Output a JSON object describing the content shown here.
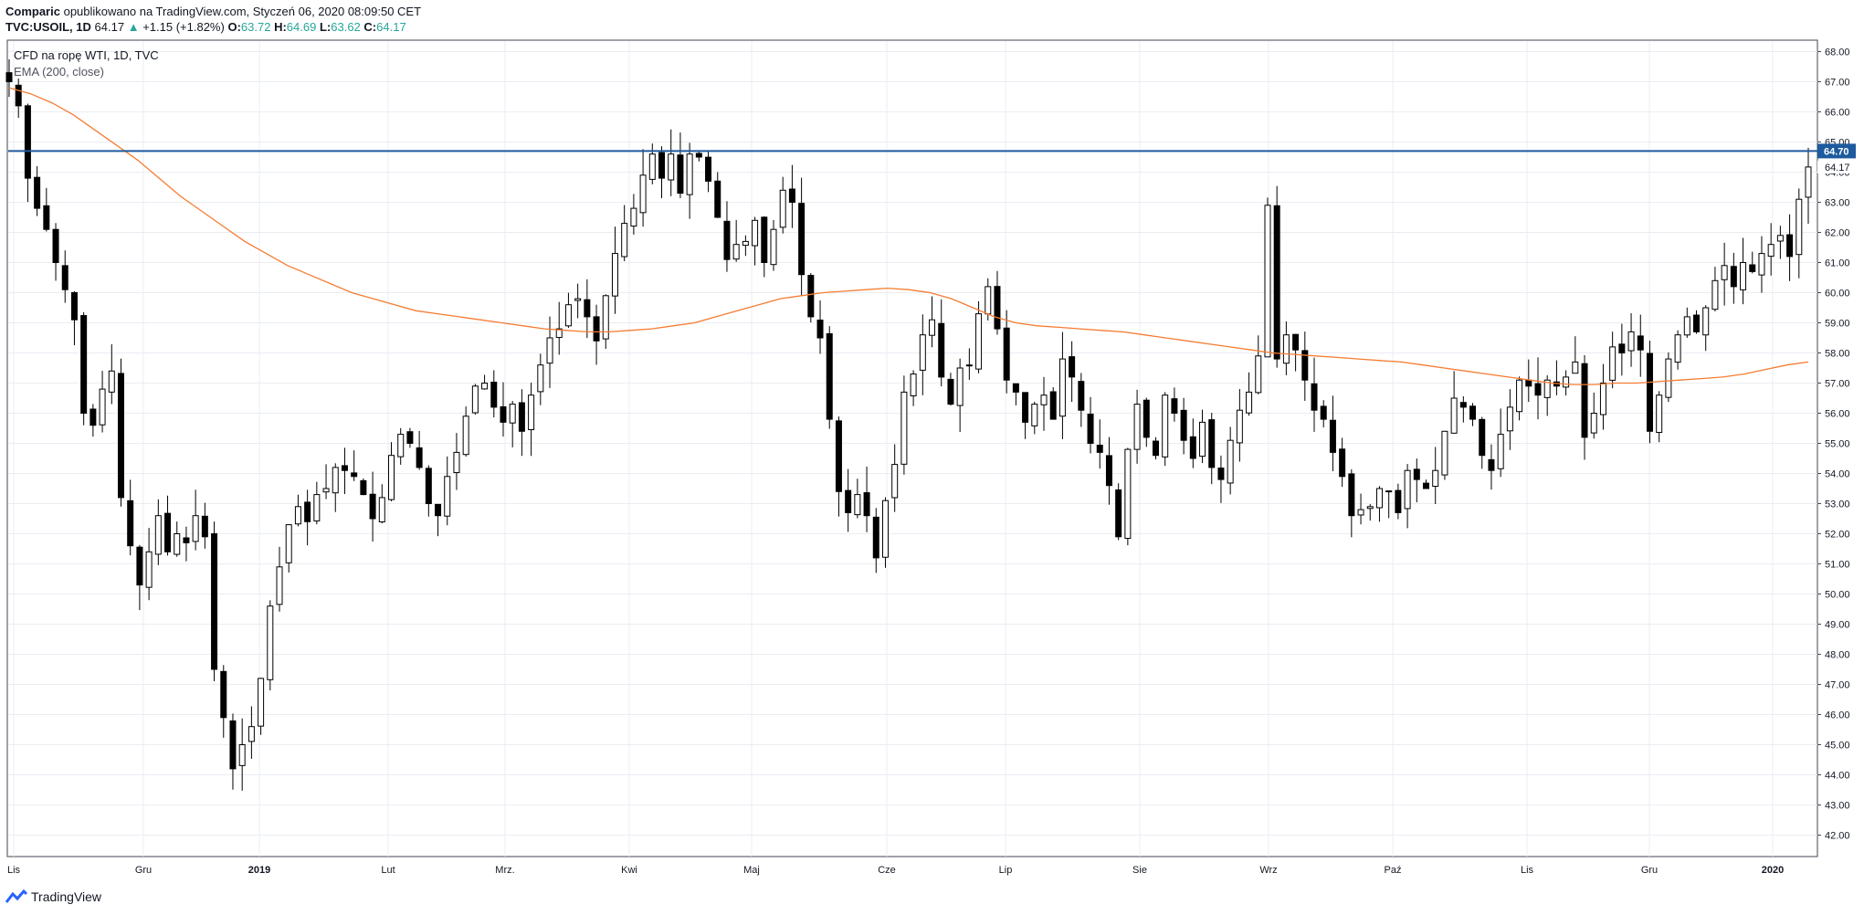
{
  "header": {
    "publisher": "Comparic",
    "published_text": "opublikowano na TradingView.com, Styczeń 06, 2020 08:09:50 CET",
    "symbol_text": "TVC:USOIL, 1D",
    "last": "64.17",
    "change": "+1.15 (+1.82%)",
    "o_label": "O:",
    "o": "63.72",
    "h_label": "H:",
    "h": "64.69",
    "l_label": "L:",
    "l": "63.62",
    "c_label": "C:",
    "c": "64.17",
    "arrow": "▲"
  },
  "legend": {
    "title": "CFD na ropę WTI, 1D, TVC",
    "indicator": "EMA (200, close)"
  },
  "footer": {
    "brand": "TradingView",
    "logo_icon": "tradingview-logo-icon"
  },
  "colors": {
    "ema": "#f57c32",
    "hline": "#1e5a9e",
    "grid": "#e9edf3",
    "candle": "#000000",
    "up_text": "#26a69a"
  },
  "chart_data": {
    "type": "candlestick",
    "ylim": [
      41.4,
      68.3
    ],
    "y_ticks": [
      "42.00",
      "43.00",
      "44.00",
      "45.00",
      "46.00",
      "47.00",
      "48.00",
      "49.00",
      "50.00",
      "51.00",
      "52.00",
      "53.00",
      "54.00",
      "55.00",
      "56.00",
      "57.00",
      "58.00",
      "59.00",
      "60.00",
      "61.00",
      "62.00",
      "63.00",
      "64.00",
      "65.00",
      "66.00",
      "67.00",
      "68.00"
    ],
    "x_labels": [
      "Lis",
      "Gru",
      "2019",
      "Lut",
      "Mrz.",
      "Kwi",
      "Maj",
      "Cze",
      "Lip",
      "Sie",
      "Wrz",
      "Paź",
      "Lis",
      "Gru",
      "2020"
    ],
    "horizontal_line": {
      "value": 64.7,
      "label": "64.70"
    },
    "last_price": {
      "value": 64.17,
      "label": "64.17"
    },
    "ema_label": "EMA (200, close)",
    "close_path": [
      67.0,
      66.2,
      63.8,
      62.8,
      62.1,
      61.0,
      60.1,
      59.1,
      56.0,
      55.6,
      56.8,
      57.4,
      53.2,
      51.6,
      50.3,
      51.4,
      52.6,
      51.4,
      52.0,
      51.7,
      52.6,
      51.9,
      47.5,
      45.9,
      44.2,
      45.0,
      45.6,
      47.2,
      49.6,
      50.9,
      52.3,
      52.9,
      52.4,
      53.3,
      53.5,
      54.2,
      54.1,
      53.9,
      53.3,
      52.5,
      53.2,
      54.6,
      55.3,
      55.0,
      54.2,
      53.0,
      52.6,
      53.9,
      54.7,
      55.9,
      56.9,
      57.0,
      56.2,
      55.7,
      56.3,
      55.4,
      56.6,
      57.6,
      58.5,
      58.8,
      59.6,
      59.8,
      59.2,
      58.4,
      59.9,
      61.3,
      62.3,
      62.8,
      63.9,
      64.6,
      63.8,
      64.6,
      63.3,
      64.6,
      64.5,
      63.7,
      62.5,
      61.1,
      61.6,
      61.7,
      62.4,
      61.0,
      62.1,
      63.4,
      63.0,
      60.6,
      59.2,
      58.5,
      55.8,
      53.4,
      52.7,
      53.3,
      52.6,
      51.2,
      53.1,
      54.3,
      56.7,
      57.3,
      58.6,
      59.1,
      57.2,
      56.3,
      57.5,
      57.6,
      59.3,
      60.2,
      58.8,
      57.1,
      56.7,
      55.7,
      56.3,
      56.6,
      55.8,
      57.8,
      57.2,
      56.1,
      55.0,
      54.7,
      53.6,
      51.9,
      54.8,
      56.3,
      55.2,
      54.6,
      56.6,
      56.0,
      55.1,
      54.5,
      55.7,
      54.2,
      53.8,
      55.1,
      56.1,
      56.7,
      57.9,
      62.9,
      57.8,
      58.6,
      58.1,
      57.1,
      56.1,
      55.8,
      54.7,
      53.9,
      52.6,
      52.8,
      52.9,
      53.5,
      53.4,
      52.7,
      54.1,
      53.8,
      53.5,
      54.1,
      55.4,
      56.5,
      56.2,
      55.8,
      54.6,
      54.1,
      55.3,
      56.2,
      57.1,
      56.9,
      56.6,
      57.1,
      56.9,
      57.2,
      57.7,
      55.2,
      56.0,
      57.0,
      58.2,
      58.0,
      58.7,
      58.1,
      55.4,
      56.6,
      57.8,
      58.6,
      59.2,
      58.7,
      59.5,
      60.4,
      60.9,
      60.2,
      61.0,
      60.7,
      61.3,
      61.6,
      61.9,
      61.2,
      63.1,
      64.17
    ],
    "ema_path": [
      66.8,
      66.6,
      66.3,
      65.9,
      65.4,
      64.9,
      64.4,
      63.8,
      63.2,
      62.7,
      62.2,
      61.7,
      61.3,
      60.9,
      60.6,
      60.3,
      60.0,
      59.8,
      59.6,
      59.4,
      59.3,
      59.2,
      59.1,
      59.0,
      58.9,
      58.8,
      58.75,
      58.7,
      58.7,
      58.75,
      58.8,
      58.9,
      59.0,
      59.2,
      59.4,
      59.6,
      59.8,
      59.9,
      60.0,
      60.05,
      60.1,
      60.15,
      60.1,
      60.0,
      59.8,
      59.5,
      59.2,
      59.0,
      58.9,
      58.85,
      58.8,
      58.75,
      58.7,
      58.6,
      58.5,
      58.4,
      58.3,
      58.2,
      58.1,
      58.0,
      57.95,
      57.9,
      57.85,
      57.8,
      57.75,
      57.7,
      57.6,
      57.5,
      57.4,
      57.3,
      57.2,
      57.1,
      57.0,
      56.95,
      56.95,
      57.0,
      57.0,
      57.05,
      57.1,
      57.15,
      57.2,
      57.3,
      57.45,
      57.6,
      57.7
    ]
  }
}
